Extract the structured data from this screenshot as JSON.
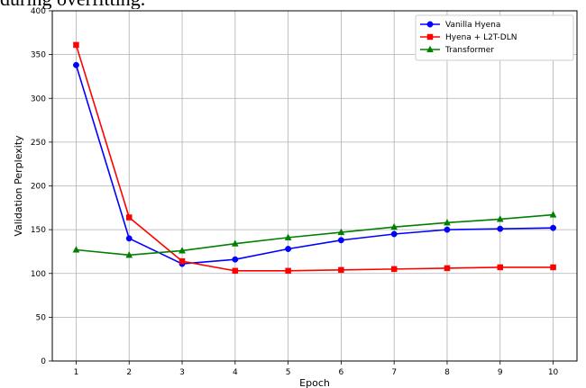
{
  "page_header_text": "during overfitting.",
  "chart_data": {
    "type": "line",
    "title": "",
    "xlabel": "Epoch",
    "ylabel": "Validation Perplexity",
    "x": [
      1,
      2,
      3,
      4,
      5,
      6,
      7,
      8,
      9,
      10
    ],
    "xlim": [
      0.55,
      10.45
    ],
    "ylim": [
      0,
      400
    ],
    "xticks": [
      "1",
      "2",
      "3",
      "4",
      "5",
      "6",
      "7",
      "8",
      "9",
      "10"
    ],
    "yticks": [
      "0",
      "50",
      "100",
      "150",
      "200",
      "250",
      "300",
      "350",
      "400"
    ],
    "grid": true,
    "legend_position": "top-right",
    "series": [
      {
        "name": "Vanilla Hyena",
        "color": "#0000ff",
        "marker": "circle",
        "values": [
          338,
          140,
          111,
          116,
          128,
          138,
          145,
          150,
          151,
          152
        ]
      },
      {
        "name": "Hyena + L2T-DLN",
        "color": "#ff0000",
        "marker": "square",
        "values": [
          361,
          164,
          114,
          103,
          103,
          104,
          105,
          106,
          107,
          107
        ]
      },
      {
        "name": "Transformer",
        "color": "#008000",
        "marker": "triangle",
        "values": [
          127,
          121,
          126,
          134,
          141,
          147,
          153,
          158,
          162,
          167
        ]
      }
    ]
  }
}
